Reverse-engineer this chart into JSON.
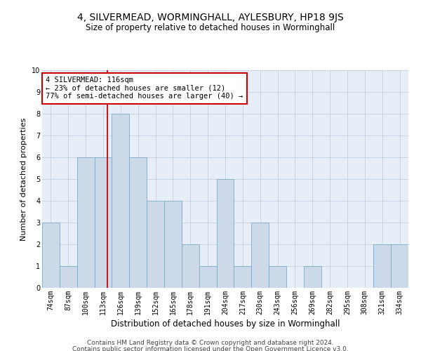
{
  "title": "4, SILVERMEAD, WORMINGHALL, AYLESBURY, HP18 9JS",
  "subtitle": "Size of property relative to detached houses in Worminghall",
  "xlabel": "Distribution of detached houses by size in Worminghall",
  "ylabel": "Number of detached properties",
  "categories": [
    "74sqm",
    "87sqm",
    "100sqm",
    "113sqm",
    "126sqm",
    "139sqm",
    "152sqm",
    "165sqm",
    "178sqm",
    "191sqm",
    "204sqm",
    "217sqm",
    "230sqm",
    "243sqm",
    "256sqm",
    "269sqm",
    "282sqm",
    "295sqm",
    "308sqm",
    "321sqm",
    "334sqm"
  ],
  "values": [
    3,
    1,
    6,
    6,
    8,
    6,
    4,
    4,
    2,
    1,
    5,
    1,
    3,
    1,
    0,
    1,
    0,
    0,
    0,
    2,
    2
  ],
  "bar_color": "#ccd9e8",
  "bar_edgecolor": "#7aaBc8",
  "red_line_index": 3.23,
  "annotation_line1": "4 SILVERMEAD: 116sqm",
  "annotation_line2": "← 23% of detached houses are smaller (12)",
  "annotation_line3": "77% of semi-detached houses are larger (40) →",
  "annotation_box_edgecolor": "#cc0000",
  "red_line_color": "#cc0000",
  "ylim": [
    0,
    10
  ],
  "yticks": [
    0,
    1,
    2,
    3,
    4,
    5,
    6,
    7,
    8,
    9,
    10
  ],
  "grid_color": "#c8d4e4",
  "background_color": "#e8eef8",
  "footer1": "Contains HM Land Registry data © Crown copyright and database right 2024.",
  "footer2": "Contains public sector information licensed under the Open Government Licence v3.0.",
  "title_fontsize": 10,
  "subtitle_fontsize": 8.5,
  "xlabel_fontsize": 8.5,
  "ylabel_fontsize": 8,
  "tick_fontsize": 7,
  "annotation_fontsize": 7.5,
  "footer_fontsize": 6.5
}
